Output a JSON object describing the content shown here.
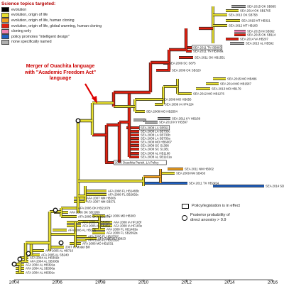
{
  "legend": {
    "title": "Science topics targeted:",
    "items": [
      {
        "label": "evolution",
        "color": "#000000"
      },
      {
        "label": "evolution, origin of life",
        "color": "#e8e030"
      },
      {
        "label": "evolution, origin of life, human cloning",
        "color": "#f0a020"
      },
      {
        "label": "evolution, origin of life, global warming, human cloning",
        "color": "#e02010"
      },
      {
        "label": "cloning only",
        "color": "#f080b0"
      },
      {
        "label": "policy promotes \"intelligent design\"",
        "color": "#2060c0"
      },
      {
        "label": "none specifically named",
        "color": "#b0b0b0"
      }
    ]
  },
  "callout": {
    "line1": "Merger of Ouachita language",
    "line2": "with \"Academic Freedom Act\"",
    "line3": "language"
  },
  "key": {
    "in_effect": "Policy/legislation is in effect",
    "posterior_line1": "Posterior probability of",
    "posterior_line2": "direct ancestry > 0.9"
  },
  "axis": {
    "ticks": [
      "2004",
      "2006",
      "2008",
      "2010",
      "2012",
      "2014",
      "2016"
    ]
  },
  "top_leaves": [
    {
      "label": "SEA 2015 OK SB665",
      "color": "#b0b0b0"
    },
    {
      "label": "SEA 2014 OK SB1765",
      "color": "#e8e030"
    },
    {
      "label": "SEA 2013 OK SB758",
      "color": "#e8e030"
    },
    {
      "label": "SEA 2015 MT HB321",
      "color": "#e8e030"
    },
    {
      "label": "SEA 2012 MT HB183",
      "color": "#e8e030"
    },
    {
      "label": "SEA 2015 IN SB562",
      "color": "#f080b0"
    },
    {
      "label": "SEA 2015 OK SB114",
      "color": "#e02010"
    },
    {
      "label": "SEA 2014 VA HB207",
      "color": "#e02010"
    },
    {
      "label": "SEA 2015 AL HB592",
      "color": "#b0b0b0"
    }
  ],
  "mid_leaves": [
    {
      "label": "SEA 2011 TN SB893",
      "color": "#e02010"
    },
    {
      "label": "SEA 2011 TN HB368a",
      "color": "#e02010"
    },
    {
      "label": "SEA 2011 OK HB1551",
      "color": "#e02010"
    },
    {
      "label": "SEA 2009 SC S875",
      "color": "#e02010"
    },
    {
      "label": "SEA 2009 OK SB320",
      "color": "#e02010"
    },
    {
      "label": "SEA 2015 MO HB486",
      "color": "#e8e030"
    },
    {
      "label": "SEA 2014 MO HB1587",
      "color": "#e8e030"
    },
    {
      "label": "SEA 2013 MO HB179",
      "color": "#e8e030"
    },
    {
      "label": "SEA 2012 MO HB1276",
      "color": "#e8e030"
    },
    {
      "label": "SEA 2009 MO HB656",
      "color": "#e8e030"
    },
    {
      "label": "SEA 2009 IA HF4224",
      "color": "#e8e030"
    },
    {
      "label": "SEA 2008 MO HB2554",
      "color": "#e8e030"
    },
    {
      "label": "SEA 2011 KY HB169",
      "color": "#b0b0b0"
    },
    {
      "label": "SEA 2010 KY HB397",
      "color": "#b0b0b0"
    },
    {
      "label": "SEA 2008 LA SB561",
      "color": "#e02010"
    },
    {
      "label": "SEA 2008 LA SB733c",
      "color": "#e02010"
    },
    {
      "label": "SEA 2008 LA SB733b",
      "color": "#e02010"
    },
    {
      "label": "SEA 2008 LA SB733a",
      "color": "#e02010"
    },
    {
      "label": "SEA 2008 MO HB6007",
      "color": "#e02010"
    },
    {
      "label": "SEA 2008 SC S1386",
      "color": "#e02010"
    },
    {
      "label": "SEA 2008 SC S1381",
      "color": "#e02010"
    },
    {
      "label": "SEA 2008 AL HB1168",
      "color": "#e02010"
    },
    {
      "label": "SEA 2008 AL SB1161a",
      "color": "#e02010"
    },
    {
      "label": "2006 Ouachita Parish, LA Policy",
      "color": "#e02010"
    }
  ],
  "lower_leaves": [
    {
      "label": "SEA 2011 NM HB302",
      "color": "#f0a020"
    },
    {
      "label": "SEA 2009 NM SB433",
      "color": "#e8e030"
    },
    {
      "label": "SEA 2011 TX HB2454",
      "color": "#2060c0"
    },
    {
      "label": "SEA 2014 SD SB112",
      "color": "#2060c0"
    },
    {
      "label": "AFA 2008 FL HB1483b",
      "color": "#e8e030"
    },
    {
      "label": "AFA 2008 FL SB2692c",
      "color": "#e8e030"
    },
    {
      "label": "AFA 2007 NM HB506",
      "color": "#e8e030"
    },
    {
      "label": "AFA 2007 NM SB371",
      "color": "#e8e030"
    },
    {
      "label": "AFA 2006 OK HB2107b",
      "color": "#e8e030"
    },
    {
      "label": "AFA 2006 OK SB1959",
      "color": "#e8e030"
    },
    {
      "label": "AFA 2006 OK HB2107a",
      "color": "#e8e030"
    },
    {
      "label": "AFA 2008 IA HF183f",
      "color": "#e8e030"
    },
    {
      "label": "AFA 2008 IA HF183e",
      "color": "#e8e030"
    },
    {
      "label": "AFA 2008 FL HB1483a",
      "color": "#e8e030"
    },
    {
      "label": "AFA 2008 FL SB2692a",
      "color": "#e8e030"
    },
    {
      "label": "AFA 2006 FL HB1531f",
      "color": "#e8e030"
    },
    {
      "label": "AFA 2006 FL HB1531e",
      "color": "#e8e030"
    },
    {
      "label": "AFA 2006 MO HB1531",
      "color": "#e8e030"
    },
    {
      "label": "2007 IA Model Bill",
      "color": "#e8e030"
    },
    {
      "label": "AFA 2006 AL SB45b",
      "color": "#e8e030"
    },
    {
      "label": "AFA 2006 AL SB45a",
      "color": "#e8e030"
    },
    {
      "label": "AFA 2006 AL HB106",
      "color": "#e8e030"
    },
    {
      "label": "AFA 2006 MD HB300",
      "color": "#e8e030"
    },
    {
      "label": "AFA 2006 AL HB923",
      "color": "#e8e030"
    },
    {
      "label": "AFA 2005 AL HB716",
      "color": "#e8e030"
    },
    {
      "label": "AFA 2005 AL SB240",
      "color": "#e8e030"
    },
    {
      "label": "AFA 2004 AL HB391b",
      "color": "#e8e030"
    },
    {
      "label": "AFA 2004 AL SB336b",
      "color": "#e8e030"
    },
    {
      "label": "AFA 2004 AL HB391a",
      "color": "#e8e030"
    },
    {
      "label": "AFA 2004 AL SB336a",
      "color": "#e8e030"
    },
    {
      "label": "AFA 2004 AL HB391c",
      "color": "#e8e030"
    }
  ]
}
